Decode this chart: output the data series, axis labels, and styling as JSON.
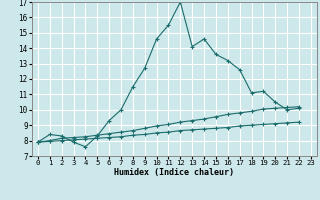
{
  "xlabel": "Humidex (Indice chaleur)",
  "bg_color": "#cde8ea",
  "grid_color": "#ffffff",
  "line_color": "#1a6b6b",
  "xlim": [
    -0.5,
    23.5
  ],
  "ylim": [
    7,
    17
  ],
  "xticks": [
    0,
    1,
    2,
    3,
    4,
    5,
    6,
    7,
    8,
    9,
    10,
    11,
    12,
    13,
    14,
    15,
    16,
    17,
    18,
    19,
    20,
    21,
    22,
    23
  ],
  "yticks": [
    7,
    8,
    9,
    10,
    11,
    12,
    13,
    14,
    15,
    16,
    17
  ],
  "series1_x": [
    0,
    1,
    2,
    3,
    4,
    5,
    6,
    7,
    8,
    9,
    10,
    11,
    12,
    13,
    14,
    15,
    16,
    17,
    18,
    19,
    20,
    21,
    22
  ],
  "series1_y": [
    7.9,
    8.4,
    8.3,
    7.9,
    7.6,
    8.3,
    9.3,
    10.0,
    11.5,
    12.7,
    14.6,
    15.5,
    17.0,
    14.1,
    14.6,
    13.6,
    13.2,
    12.6,
    11.1,
    11.2,
    10.5,
    10.0,
    10.1
  ],
  "series2_x": [
    0,
    1,
    2,
    3,
    4,
    5,
    6,
    7,
    8,
    9,
    10,
    11,
    12,
    13,
    14,
    15,
    16,
    17,
    18,
    19,
    20,
    21,
    22
  ],
  "series2_y": [
    7.9,
    8.0,
    8.15,
    8.2,
    8.25,
    8.35,
    8.45,
    8.55,
    8.65,
    8.8,
    8.95,
    9.05,
    9.2,
    9.3,
    9.4,
    9.55,
    9.7,
    9.8,
    9.9,
    10.05,
    10.1,
    10.15,
    10.2
  ],
  "series3_x": [
    0,
    1,
    2,
    3,
    4,
    5,
    6,
    7,
    8,
    9,
    10,
    11,
    12,
    13,
    14,
    15,
    16,
    17,
    18,
    19,
    20,
    21,
    22
  ],
  "series3_y": [
    7.9,
    7.95,
    8.0,
    8.05,
    8.1,
    8.15,
    8.2,
    8.25,
    8.35,
    8.4,
    8.5,
    8.55,
    8.65,
    8.7,
    8.75,
    8.8,
    8.85,
    8.95,
    9.0,
    9.05,
    9.1,
    9.15,
    9.2
  ]
}
